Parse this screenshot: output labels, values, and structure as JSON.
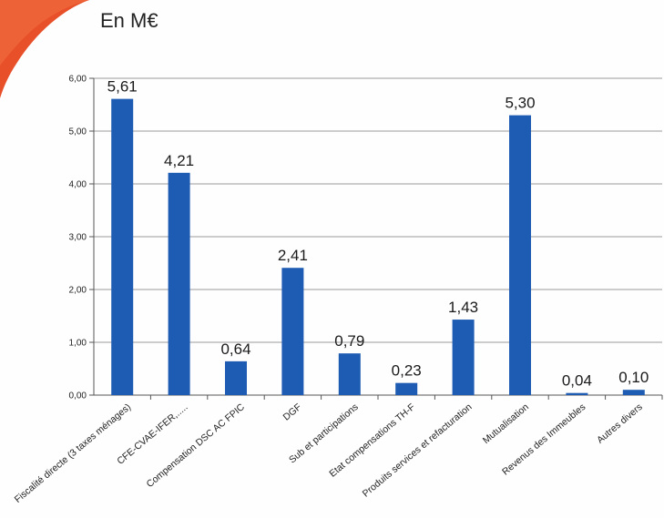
{
  "unit_label": "En M€",
  "colors": {
    "bar": "#1e5cb3",
    "accent": "#e8502a",
    "grid": "#9a9a9a",
    "axis": "#555555"
  },
  "chart_data": {
    "type": "bar",
    "title": "",
    "xlabel": "",
    "ylabel": "",
    "ylim": [
      0,
      6
    ],
    "yticks": [
      0,
      1,
      2,
      3,
      4,
      5,
      6
    ],
    "ytick_labels": [
      "0,00",
      "1,00",
      "2,00",
      "3,00",
      "4,00",
      "5,00",
      "6,00"
    ],
    "grid": true,
    "categories": [
      "Fiscalité directe (3 taxes ménages)",
      "CFE-CVAE-IFER,.....",
      "Compensation DSC AC FPIC",
      "DGF",
      "Sub et participations",
      "Etat compensations TH-F",
      "Produits services et refacturation",
      "Mutualisation",
      "Revenus des Immeubles",
      "Autres divers"
    ],
    "values": [
      5.61,
      4.21,
      0.64,
      2.41,
      0.79,
      0.23,
      1.43,
      5.3,
      0.04,
      0.1
    ],
    "value_labels": [
      "5,61",
      "4,21",
      "0,64",
      "2,41",
      "0,79",
      "0,23",
      "1,43",
      "5,30",
      "0,04",
      "0,10"
    ]
  }
}
